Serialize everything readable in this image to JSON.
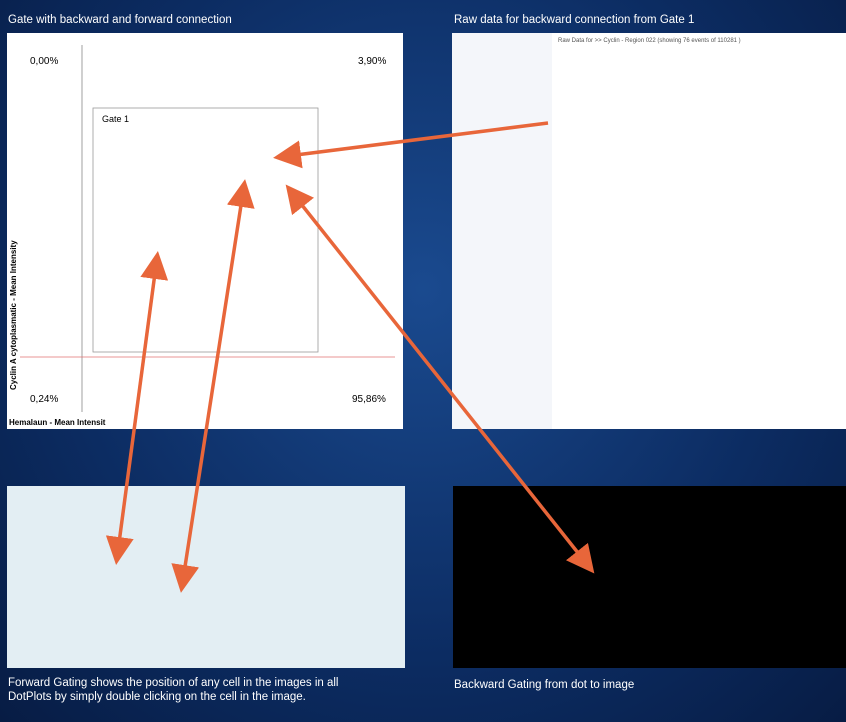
{
  "captions": {
    "top_left": "Gate with backward and forward connection",
    "top_right": "Raw data for backward connection from Gate 1",
    "bottom_left": "Forward Gating shows the position of any cell in the images in all DotPlots by simply double clicking on the cell in the image.",
    "bottom_right": "Backward Gating from dot to image"
  },
  "dotplot": {
    "quadrants": {
      "top_left": "0,00%",
      "top_right": "3,90%",
      "bottom_left": "0,24%",
      "bottom_right": "95,86%"
    },
    "gate": "Gate 1",
    "y_label": "Cyclin A cytoplasmatic - Mean Intensity",
    "x_label": "Hemalaun - Mean Intensit"
  },
  "raw_table": {
    "title": "Raw Data for >> Cyclin - Region 022 (showing 76 events of 110281 )"
  }
}
